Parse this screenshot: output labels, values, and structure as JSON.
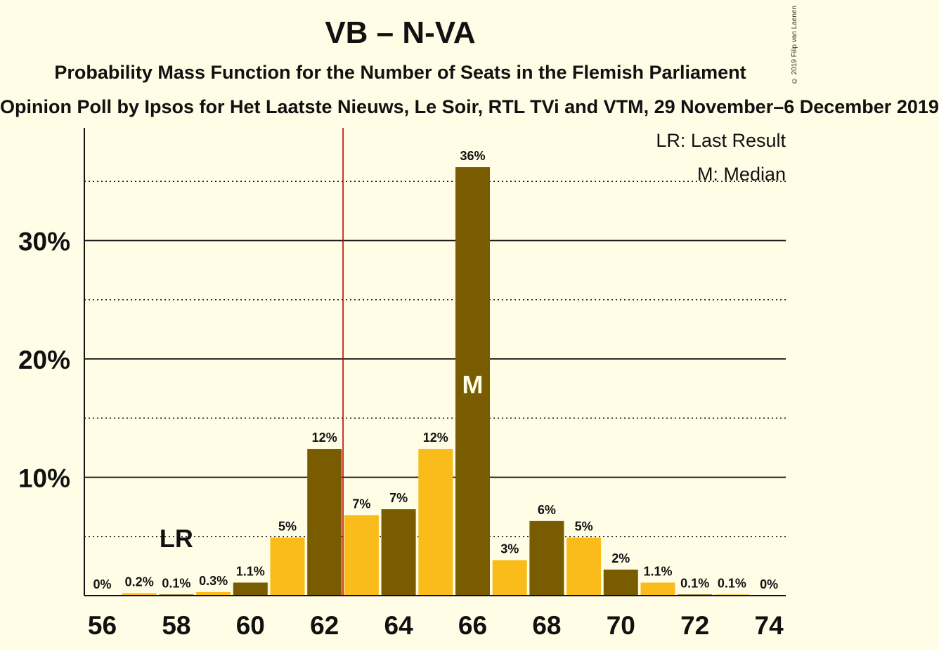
{
  "header": {
    "title": "VB – N-VA",
    "subtitle": "Probability Mass Function for the Number of Seats in the Flemish Parliament",
    "subtitle2": "Opinion Poll by Ipsos for Het Laatste Nieuws, Le Soir, RTL TVi and VTM, 29 November–6 December 2019",
    "copyright": "© 2019 Filip van Laenen"
  },
  "colors": {
    "background": "#FFFDE5",
    "dark_bar": "#7A5C00",
    "light_bar": "#F9BC1A",
    "majority_line": "#CC0000"
  },
  "chart_data": {
    "type": "bar",
    "x": [
      56,
      57,
      58,
      59,
      60,
      61,
      62,
      63,
      64,
      65,
      66,
      67,
      68,
      69,
      70,
      71,
      72,
      73,
      74
    ],
    "values": [
      0,
      0.2,
      0.1,
      0.3,
      1.1,
      5,
      12,
      7,
      7,
      12,
      36,
      3,
      6,
      5,
      2,
      1.1,
      0.1,
      0.1,
      0
    ],
    "heights_est": [
      0,
      0.2,
      0.1,
      0.3,
      1.1,
      4.9,
      12.4,
      6.8,
      7.3,
      12.4,
      36.2,
      3.0,
      6.3,
      4.9,
      2.2,
      1.1,
      0.1,
      0.1,
      0
    ],
    "labels": [
      "0%",
      "0.2%",
      "0.1%",
      "0.3%",
      "1.1%",
      "5%",
      "12%",
      "7%",
      "7%",
      "12%",
      "36%",
      "3%",
      "6%",
      "5%",
      "2%",
      "1.1%",
      "0.1%",
      "0.1%",
      "0%"
    ],
    "xticks": [
      "56",
      "58",
      "60",
      "62",
      "64",
      "66",
      "68",
      "70",
      "72",
      "74"
    ],
    "yticks": [
      "10%",
      "20%",
      "30%"
    ],
    "ylim": [
      0,
      39.5
    ],
    "majority_after": 62.5,
    "last_result_x": 58,
    "median_x": 66,
    "lr_marker": "LR",
    "median_marker": "M",
    "legend": [
      "LR: Last Result",
      "M: Median"
    ]
  }
}
